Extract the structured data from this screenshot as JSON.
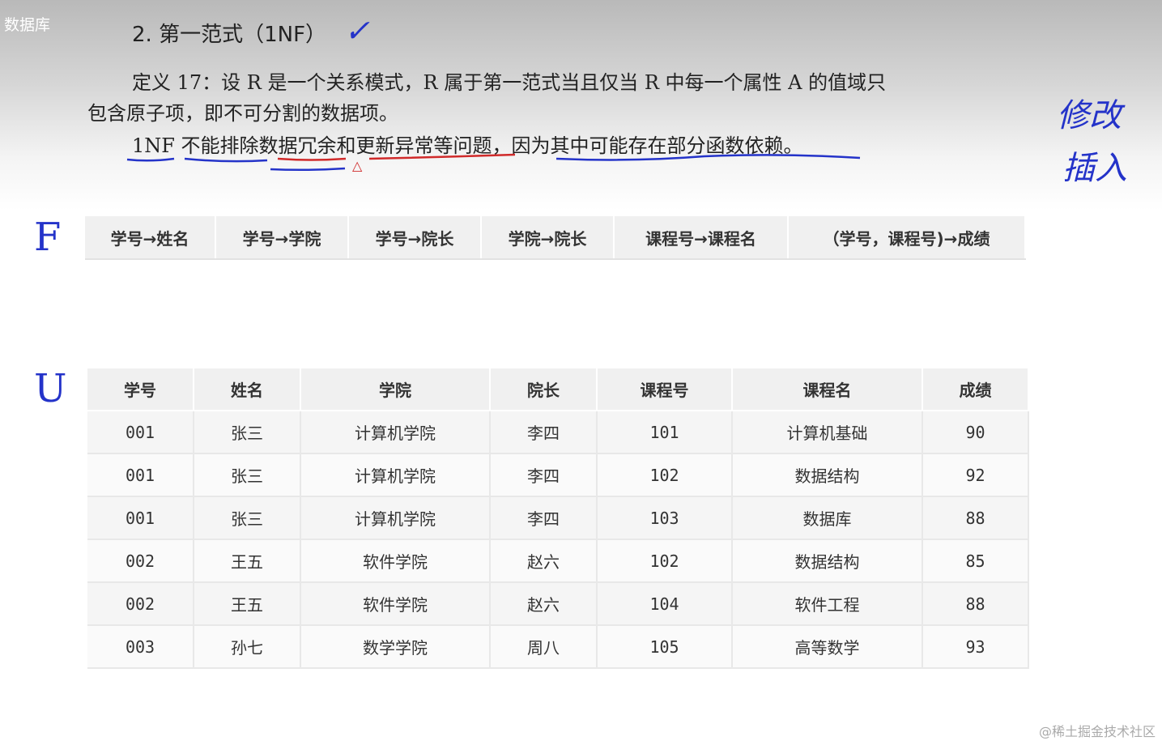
{
  "corner_label": "数据库",
  "title": "2. 第一范式（1NF）",
  "definition_line1": "定义 17：设 R 是一个关系模式，R 属于第一范式当且仅当 R 中每一个属性 A 的值域只",
  "definition_line2": "包含原子项，即不可分割的数据项。",
  "note_line": "1NF 不能排除数据冗余和更新异常等问题，因为其中可能存在部分函数依赖。",
  "annotations": {
    "check": "✓",
    "side_top": "修改",
    "side_bottom": "插入",
    "label_f": "F",
    "label_u": "U",
    "triangle": "△"
  },
  "fd_table": [
    "学号→姓名",
    "学号→学院",
    "学号→院长",
    "学院→院长",
    "课程号→课程名",
    "（学号，课程号)→成绩"
  ],
  "main_table": {
    "headers": [
      "学号",
      "姓名",
      "学院",
      "院长",
      "课程号",
      "课程名",
      "成绩"
    ],
    "rows": [
      [
        "001",
        "张三",
        "计算机学院",
        "李四",
        "101",
        "计算机基础",
        "90"
      ],
      [
        "001",
        "张三",
        "计算机学院",
        "李四",
        "102",
        "数据结构",
        "92"
      ],
      [
        "001",
        "张三",
        "计算机学院",
        "李四",
        "103",
        "数据库",
        "88"
      ],
      [
        "002",
        "王五",
        "软件学院",
        "赵六",
        "102",
        "数据结构",
        "85"
      ],
      [
        "002",
        "王五",
        "软件学院",
        "赵六",
        "104",
        "软件工程",
        "88"
      ],
      [
        "003",
        "孙七",
        "数学学院",
        "周八",
        "105",
        "高等数学",
        "93"
      ]
    ]
  },
  "watermark": "@稀土掘金技术社区"
}
